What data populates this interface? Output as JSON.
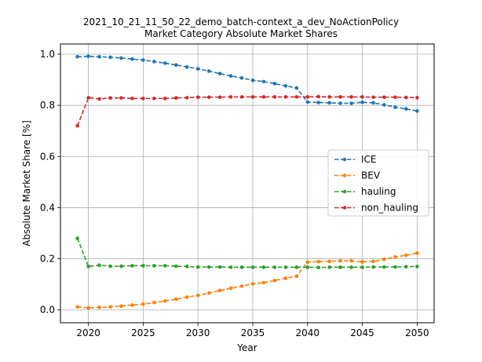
{
  "chart_data": {
    "type": "line",
    "title": "2021_10_21_11_50_22_demo_batch-context_a_dev_NoActionPolicy",
    "subtitle": "Market Category Absolute Market Shares",
    "xlabel": "Year",
    "ylabel": "Absolute Market Share [%]",
    "xlim": [
      2017.45,
      2051.55
    ],
    "ylim": [
      -0.05,
      1.04
    ],
    "xticks": [
      "2020",
      "2025",
      "2030",
      "2035",
      "2040",
      "2045",
      "2050"
    ],
    "yticks": [
      "0.0",
      "0.2",
      "0.4",
      "0.6",
      "0.8",
      "1.0"
    ],
    "grid": true,
    "legend_position": "right",
    "x": [
      2019,
      2020,
      2021,
      2022,
      2023,
      2024,
      2025,
      2026,
      2027,
      2028,
      2029,
      2030,
      2031,
      2032,
      2033,
      2034,
      2035,
      2036,
      2037,
      2038,
      2039,
      2040,
      2041,
      2042,
      2043,
      2044,
      2045,
      2046,
      2047,
      2048,
      2049,
      2050
    ],
    "series": [
      {
        "name": "ICE",
        "color": "#1f77b4",
        "values": [
          0.99,
          0.992,
          0.99,
          0.988,
          0.985,
          0.981,
          0.977,
          0.971,
          0.965,
          0.958,
          0.95,
          0.943,
          0.934,
          0.924,
          0.915,
          0.907,
          0.898,
          0.893,
          0.885,
          0.876,
          0.868,
          0.813,
          0.811,
          0.81,
          0.808,
          0.808,
          0.812,
          0.81,
          0.802,
          0.793,
          0.786,
          0.778
        ]
      },
      {
        "name": "BEV",
        "color": "#ff7f0e",
        "values": [
          0.012,
          0.008,
          0.01,
          0.012,
          0.015,
          0.019,
          0.023,
          0.029,
          0.035,
          0.042,
          0.05,
          0.057,
          0.066,
          0.076,
          0.085,
          0.093,
          0.102,
          0.107,
          0.115,
          0.124,
          0.132,
          0.187,
          0.189,
          0.19,
          0.192,
          0.192,
          0.188,
          0.19,
          0.198,
          0.207,
          0.214,
          0.222
        ]
      },
      {
        "name": "hauling",
        "color": "#2ca02c",
        "values": [
          0.28,
          0.17,
          0.175,
          0.171,
          0.171,
          0.173,
          0.173,
          0.173,
          0.173,
          0.171,
          0.17,
          0.168,
          0.168,
          0.168,
          0.167,
          0.167,
          0.167,
          0.167,
          0.167,
          0.167,
          0.167,
          0.167,
          0.166,
          0.167,
          0.167,
          0.167,
          0.167,
          0.168,
          0.168,
          0.168,
          0.169,
          0.17
        ]
      },
      {
        "name": "non_hauling",
        "color": "#d62728",
        "values": [
          0.72,
          0.83,
          0.825,
          0.829,
          0.829,
          0.827,
          0.827,
          0.827,
          0.827,
          0.829,
          0.83,
          0.832,
          0.832,
          0.832,
          0.833,
          0.833,
          0.833,
          0.833,
          0.833,
          0.833,
          0.833,
          0.833,
          0.834,
          0.833,
          0.833,
          0.833,
          0.833,
          0.832,
          0.832,
          0.832,
          0.831,
          0.83
        ]
      }
    ]
  }
}
